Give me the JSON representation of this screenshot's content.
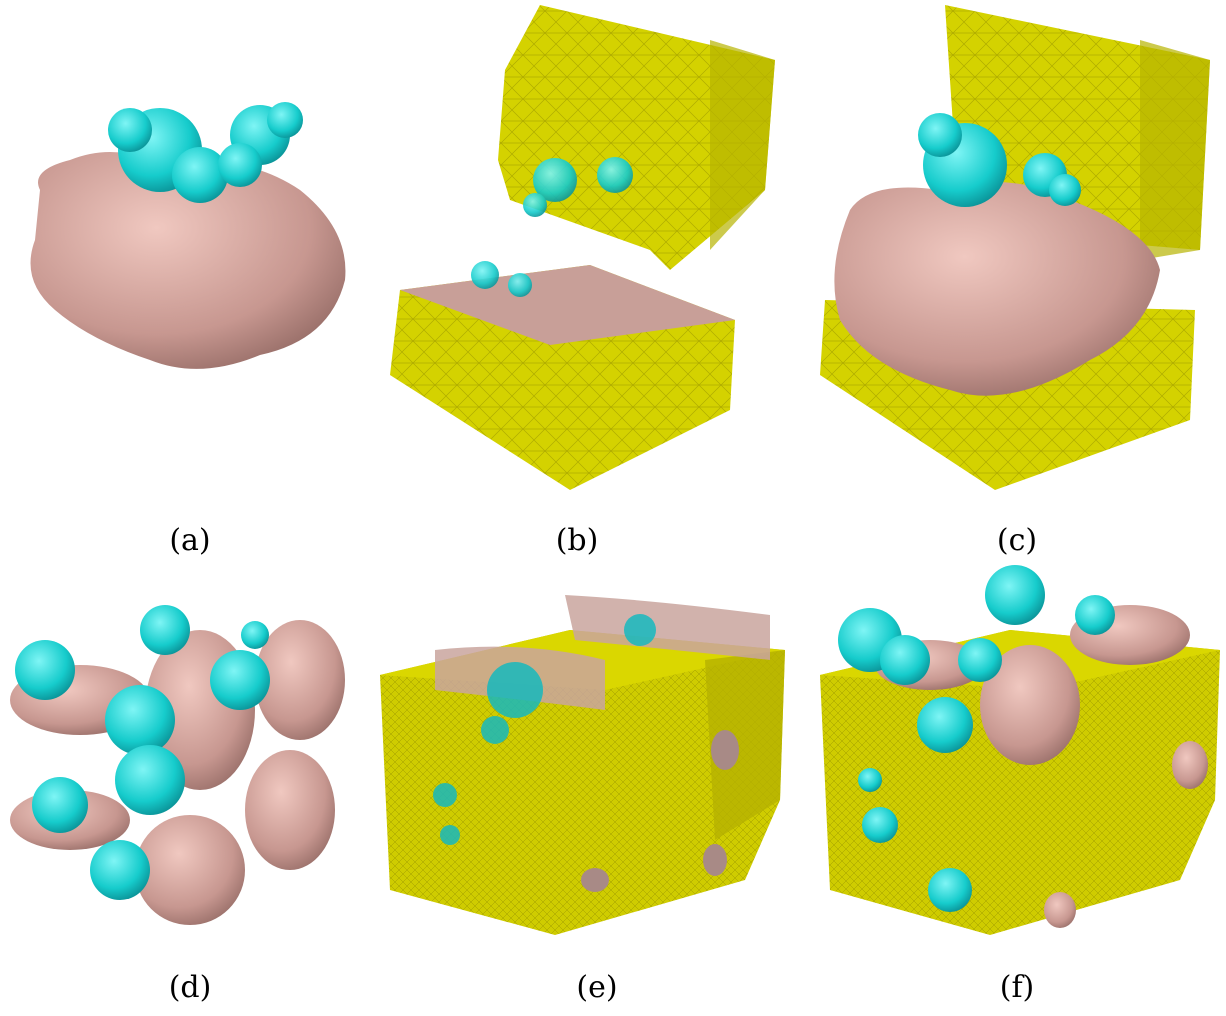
{
  "panels": [
    {
      "label": "(a)"
    },
    {
      "label": "(b)"
    },
    {
      "label": "(c)"
    },
    {
      "label": "(d)"
    },
    {
      "label": "(e)"
    },
    {
      "label": "(f)"
    }
  ],
  "colors": {
    "mesh_yellow": "#d6d300",
    "mesh_dark": "#b9b400",
    "protein_pink": "#d9aaa2",
    "protein_cyan": "#22d8d8",
    "background": "#ffffff"
  }
}
